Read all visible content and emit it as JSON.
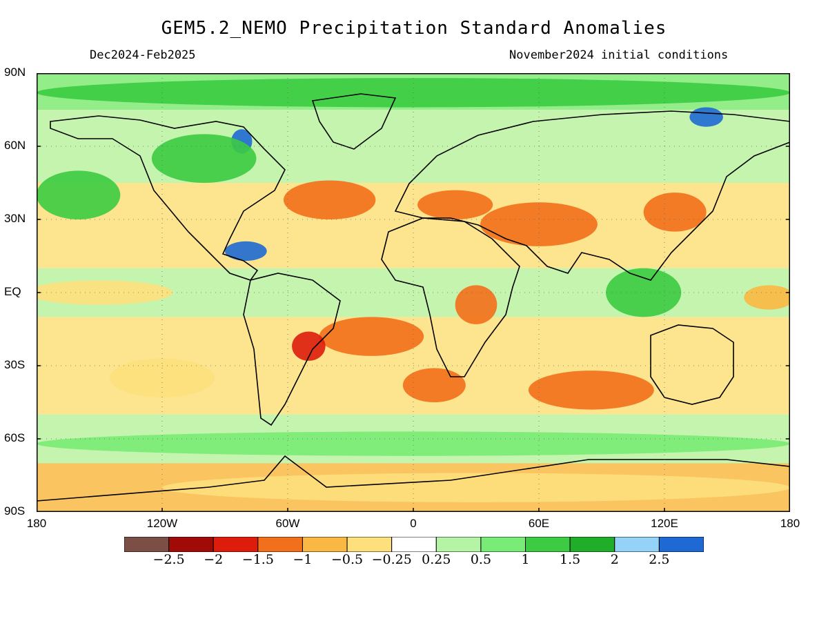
{
  "title": "GEM5.2_NEMO Precipitation Standard Anomalies",
  "period": "Dec2024-Feb2025",
  "initial_conditions": "November2024 initial conditions",
  "map": {
    "projection": "cylindrical equidistant",
    "lon_range": [
      -180,
      180
    ],
    "lat_range": [
      -90,
      90
    ],
    "lat_ticks": [
      {
        "lat": 90,
        "label": "90N"
      },
      {
        "lat": 60,
        "label": "60N"
      },
      {
        "lat": 30,
        "label": "30N"
      },
      {
        "lat": 0,
        "label": "EQ"
      },
      {
        "lat": -30,
        "label": "30S"
      },
      {
        "lat": -60,
        "label": "60S"
      },
      {
        "lat": -90,
        "label": "90S"
      }
    ],
    "lon_ticks": [
      {
        "lon": -180,
        "label": "180"
      },
      {
        "lon": -120,
        "label": "120W"
      },
      {
        "lon": -60,
        "label": "60W"
      },
      {
        "lon": 0,
        "label": "0"
      },
      {
        "lon": 60,
        "label": "60E"
      },
      {
        "lon": 120,
        "label": "120E"
      },
      {
        "lon": 180,
        "label": "180"
      }
    ],
    "regions": [
      {
        "name": "north-atlantic-dry",
        "lon": -40,
        "lat": 38,
        "rx": 22,
        "ry": 8,
        "class": -1.5
      },
      {
        "name": "mediterranean-dry",
        "lon": 20,
        "lat": 36,
        "rx": 18,
        "ry": 6,
        "class": -1.5
      },
      {
        "name": "middle-east-dry",
        "lon": 60,
        "lat": 28,
        "rx": 28,
        "ry": 9,
        "class": -1.5
      },
      {
        "name": "east-asia-dry",
        "lon": 125,
        "lat": 33,
        "rx": 15,
        "ry": 8,
        "class": -1.5
      },
      {
        "name": "south-atlantic-dry",
        "lon": -20,
        "lat": -18,
        "rx": 25,
        "ry": 8,
        "class": -1.5
      },
      {
        "name": "south-america-dry",
        "lon": -50,
        "lat": -22,
        "rx": 8,
        "ry": 6,
        "class": -2
      },
      {
        "name": "east-africa-dry",
        "lon": 30,
        "lat": -5,
        "rx": 10,
        "ry": 8,
        "class": -1.5
      },
      {
        "name": "south-indian-dry",
        "lon": 85,
        "lat": -40,
        "rx": 30,
        "ry": 8,
        "class": -1.5
      },
      {
        "name": "southern-atlantic-dry",
        "lon": 10,
        "lat": -38,
        "rx": 15,
        "ry": 7,
        "class": -1.5
      },
      {
        "name": "equatorial-pacific-dry",
        "lon": -150,
        "lat": 0,
        "rx": 35,
        "ry": 5,
        "class": -0.5
      },
      {
        "name": "west-pacific-dry",
        "lon": 170,
        "lat": -2,
        "rx": 12,
        "ry": 5,
        "class": -1
      },
      {
        "name": "south-pacific-dry",
        "lon": -120,
        "lat": -35,
        "rx": 25,
        "ry": 8,
        "class": -0.5
      },
      {
        "name": "caribbean-wet",
        "lon": -80,
        "lat": 17,
        "rx": 10,
        "ry": 4,
        "class": 2.5
      },
      {
        "name": "hudson-wet",
        "lon": -82,
        "lat": 62,
        "rx": 5,
        "ry": 5,
        "class": 2.5
      },
      {
        "name": "siberia-wet",
        "lon": 140,
        "lat": 72,
        "rx": 8,
        "ry": 4,
        "class": 2.5
      },
      {
        "name": "canada-wet",
        "lon": -100,
        "lat": 55,
        "rx": 25,
        "ry": 10,
        "class": 1
      },
      {
        "name": "maritime-continent-wet",
        "lon": 110,
        "lat": 0,
        "rx": 18,
        "ry": 10,
        "class": 1
      },
      {
        "name": "north-pacific-wet",
        "lon": -160,
        "lat": 40,
        "rx": 20,
        "ry": 10,
        "class": 1
      },
      {
        "name": "arctic-wet",
        "lon": 0,
        "lat": 82,
        "rx": 180,
        "ry": 6,
        "class": 1
      },
      {
        "name": "southern-ocean-wet",
        "lon": 0,
        "lat": -62,
        "rx": 180,
        "ry": 5,
        "class": 0.5
      },
      {
        "name": "antarctica-dry",
        "lon": 30,
        "lat": -80,
        "rx": 150,
        "ry": 6,
        "class": -0.5
      }
    ]
  },
  "colorbar": {
    "colors": [
      "#7b4f46",
      "#a00a07",
      "#dd1c0c",
      "#f26f1b",
      "#f9b843",
      "#fde07c",
      "#ffffff",
      "#b6f4a5",
      "#78ec76",
      "#3ccb42",
      "#20ad2a",
      "#95d2f8",
      "#1e69d3"
    ],
    "labels": [
      "-2.5",
      "-2",
      "-1.5",
      "-1",
      "-0.5",
      "-0.25",
      "0.25",
      "0.5",
      "1",
      "1.5",
      "2",
      "2.5"
    ],
    "label_texts": [
      "−2.5",
      "−2",
      "−1.5",
      "−1",
      "−0.5",
      "−0.25",
      "0.25",
      "0.5",
      "1",
      "1.5",
      "2",
      "2.5"
    ]
  }
}
